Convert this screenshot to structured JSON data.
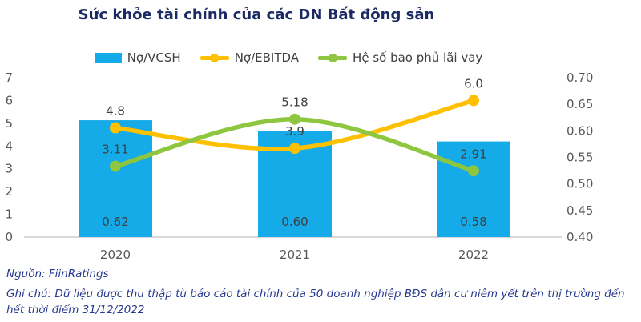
{
  "title": "Sức khỏe tài chính của các DN Bất động sản",
  "source": "Nguồn: FiinRatings",
  "note": "Ghi chú: Dữ liệu được thu thập từ báo cáo tài chính của 50 doanh nghiệp BĐS dân cư niêm yết trên thị trường đến hết thời điểm 31/12/2022",
  "colors": {
    "title": "#1b2a63",
    "footnote": "#26388f",
    "axis_labels": "#595959",
    "data_labels": "#3f3f3f",
    "axis_line": "#d9d9d9",
    "bar_blue": "#14abe8",
    "line_yellow": "#ffc000",
    "line_green": "#8fc63f"
  },
  "chart_data": {
    "type": "bar+line combo",
    "categories": [
      "2020",
      "2021",
      "2022"
    ],
    "series": [
      {
        "name": "Nợ/VCSH",
        "type": "bar",
        "axis": "right",
        "color": "#14abe8",
        "values": [
          0.62,
          0.6,
          0.58
        ],
        "labels": [
          "0.62",
          "0.60",
          "0.58"
        ],
        "label_position": "inside-base"
      },
      {
        "name": "Nợ/EBITDA",
        "type": "line",
        "axis": "left",
        "color": "#ffc000",
        "values": [
          4.8,
          3.9,
          6.0
        ],
        "labels": [
          "4.8",
          "3.9",
          "6.0"
        ],
        "label_position": "above-point"
      },
      {
        "name": "Hệ số bao phủ lãi vay",
        "type": "line",
        "axis": "left",
        "color": "#8fc63f",
        "values": [
          3.11,
          5.18,
          2.91
        ],
        "labels": [
          "3.11",
          "5.18",
          "2.91"
        ],
        "label_position": "above-point"
      }
    ],
    "left_axis": {
      "min": 0,
      "max": 7,
      "ticks": [
        "0",
        "1",
        "2",
        "3",
        "4",
        "5",
        "6",
        "7"
      ]
    },
    "right_axis": {
      "min": 0.4,
      "max": 0.7,
      "ticks": [
        "0.40",
        "0.45",
        "0.50",
        "0.55",
        "0.60",
        "0.65",
        "0.70"
      ]
    },
    "grid": "bottom axis line only",
    "legend_position": "top",
    "line_style": "smoothed with round markers"
  }
}
